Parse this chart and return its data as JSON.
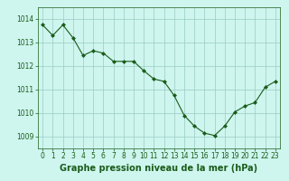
{
  "x": [
    0,
    1,
    2,
    3,
    4,
    5,
    6,
    7,
    8,
    9,
    10,
    11,
    12,
    13,
    14,
    15,
    16,
    17,
    18,
    19,
    20,
    21,
    22,
    23
  ],
  "y": [
    1013.75,
    1013.3,
    1013.75,
    1013.2,
    1012.45,
    1012.65,
    1012.55,
    1012.2,
    1012.2,
    1012.2,
    1011.8,
    1011.45,
    1011.35,
    1010.75,
    1009.9,
    1009.45,
    1009.15,
    1009.05,
    1009.45,
    1010.05,
    1010.3,
    1010.45,
    1011.1,
    1011.35
  ],
  "line_color": "#1a5c1a",
  "marker": "D",
  "marker_size": 2.0,
  "bg_color": "#cef5ee",
  "grid_color": "#99ccc4",
  "xlabel": "Graphe pression niveau de la mer (hPa)",
  "xlabel_color": "#1a5c1a",
  "xlabel_fontsize": 7,
  "tick_color": "#1a5c1a",
  "tick_fontsize": 5.5,
  "ylim": [
    1008.5,
    1014.5
  ],
  "yticks": [
    1009,
    1010,
    1011,
    1012,
    1013,
    1014
  ],
  "xticks": [
    0,
    1,
    2,
    3,
    4,
    5,
    6,
    7,
    8,
    9,
    10,
    11,
    12,
    13,
    14,
    15,
    16,
    17,
    18,
    19,
    20,
    21,
    22,
    23
  ]
}
